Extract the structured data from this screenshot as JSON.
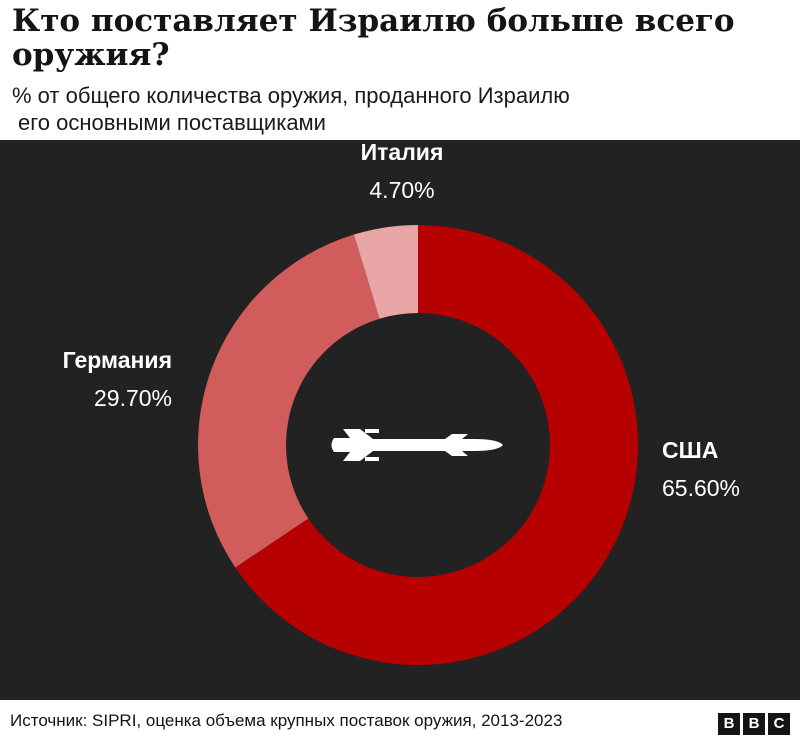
{
  "header": {
    "title": "Кто поставляет Израилю больше всего оружия?",
    "subtitle_line1": "% от общего количества оружия, проданного Израилю",
    "subtitle_line2": "его основными поставщиками"
  },
  "chart_data": {
    "type": "pie",
    "donut": true,
    "title": "Кто поставляет Израилю больше всего оружия?",
    "subtitle": "% от общего количества оружия, проданного Израилю его основными поставщиками",
    "slices": [
      {
        "label": "США",
        "value": 65.6,
        "display": "65.60%",
        "color": "#b70000"
      },
      {
        "label": "Германия",
        "value": 29.7,
        "display": "29.70%",
        "color": "#d15c5c"
      },
      {
        "label": "Италия",
        "value": 4.7,
        "display": "4.70%",
        "color": "#e8a6a6"
      }
    ],
    "center_icon": "missile-icon",
    "background": "#222222"
  },
  "footer": {
    "source": "Источник: SIPRI, оценка объема крупных поставок оружия, 2013-2023",
    "logo": [
      "B",
      "B",
      "C"
    ]
  }
}
